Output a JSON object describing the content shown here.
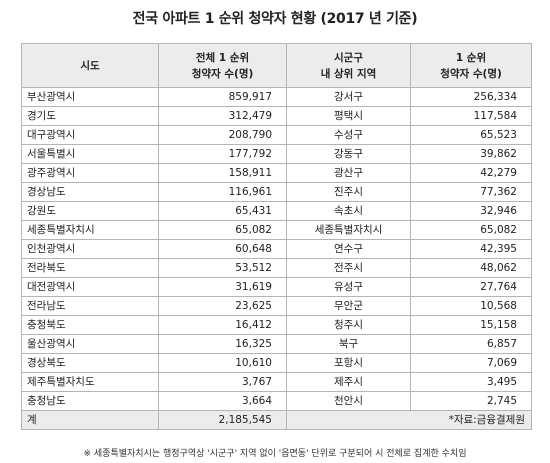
{
  "title": "전국 아파트 1 순위 청약자 현황 (2017 년 기준)",
  "headers": {
    "col1": "시도",
    "col2_line1": "전체 1 순위",
    "col2_line2": "청약자 수(명)",
    "col3_line1": "시군구",
    "col3_line2": "내 상위 지역",
    "col4_line1": "1 순위",
    "col4_line2": "청약자 수(명)"
  },
  "rows": [
    {
      "province": "부산광역시",
      "total": "859,917",
      "district": "강서구",
      "district_count": "256,334"
    },
    {
      "province": "경기도",
      "total": "312,479",
      "district": "평택시",
      "district_count": "117,584"
    },
    {
      "province": "대구광역시",
      "total": "208,790",
      "district": "수성구",
      "district_count": "65,523"
    },
    {
      "province": "서울특별시",
      "total": "177,792",
      "district": "강동구",
      "district_count": "39,862"
    },
    {
      "province": "광주광역시",
      "total": "158,911",
      "district": "광산구",
      "district_count": "42,279"
    },
    {
      "province": "경상남도",
      "total": "116,961",
      "district": "진주시",
      "district_count": "77,362"
    },
    {
      "province": "강원도",
      "total": "65,431",
      "district": "속초시",
      "district_count": "32,946"
    },
    {
      "province": "세종특별자치시",
      "total": "65,082",
      "district": "세종특별자치시",
      "district_count": "65,082"
    },
    {
      "province": "인천광역시",
      "total": "60,648",
      "district": "연수구",
      "district_count": "42,395"
    },
    {
      "province": "전라북도",
      "total": "53,512",
      "district": "전주시",
      "district_count": "48,062"
    },
    {
      "province": "대전광역시",
      "total": "31,619",
      "district": "유성구",
      "district_count": "27,764"
    },
    {
      "province": "전라남도",
      "total": "23,625",
      "district": "무안군",
      "district_count": "10,568"
    },
    {
      "province": "충청북도",
      "total": "16,412",
      "district": "청주시",
      "district_count": "15,158"
    },
    {
      "province": "울산광역시",
      "total": "16,325",
      "district": "북구",
      "district_count": "6,857"
    },
    {
      "province": "경상북도",
      "total": "10,610",
      "district": "포항시",
      "district_count": "7,069"
    },
    {
      "province": "제주특별자치도",
      "total": "3,767",
      "district": "제주시",
      "district_count": "3,495"
    },
    {
      "province": "충청남도",
      "total": "3,664",
      "district": "천안시",
      "district_count": "2,745"
    }
  ],
  "total_row": {
    "label": "계",
    "total": "2,185,545",
    "source": "*자료:금융결제원"
  },
  "footnote": "※ 세종특별자치시는 행정구역상 '시군구' 지역 없이 '읍면동' 단위로 구분되어 시 전체로 집계한 수치임"
}
